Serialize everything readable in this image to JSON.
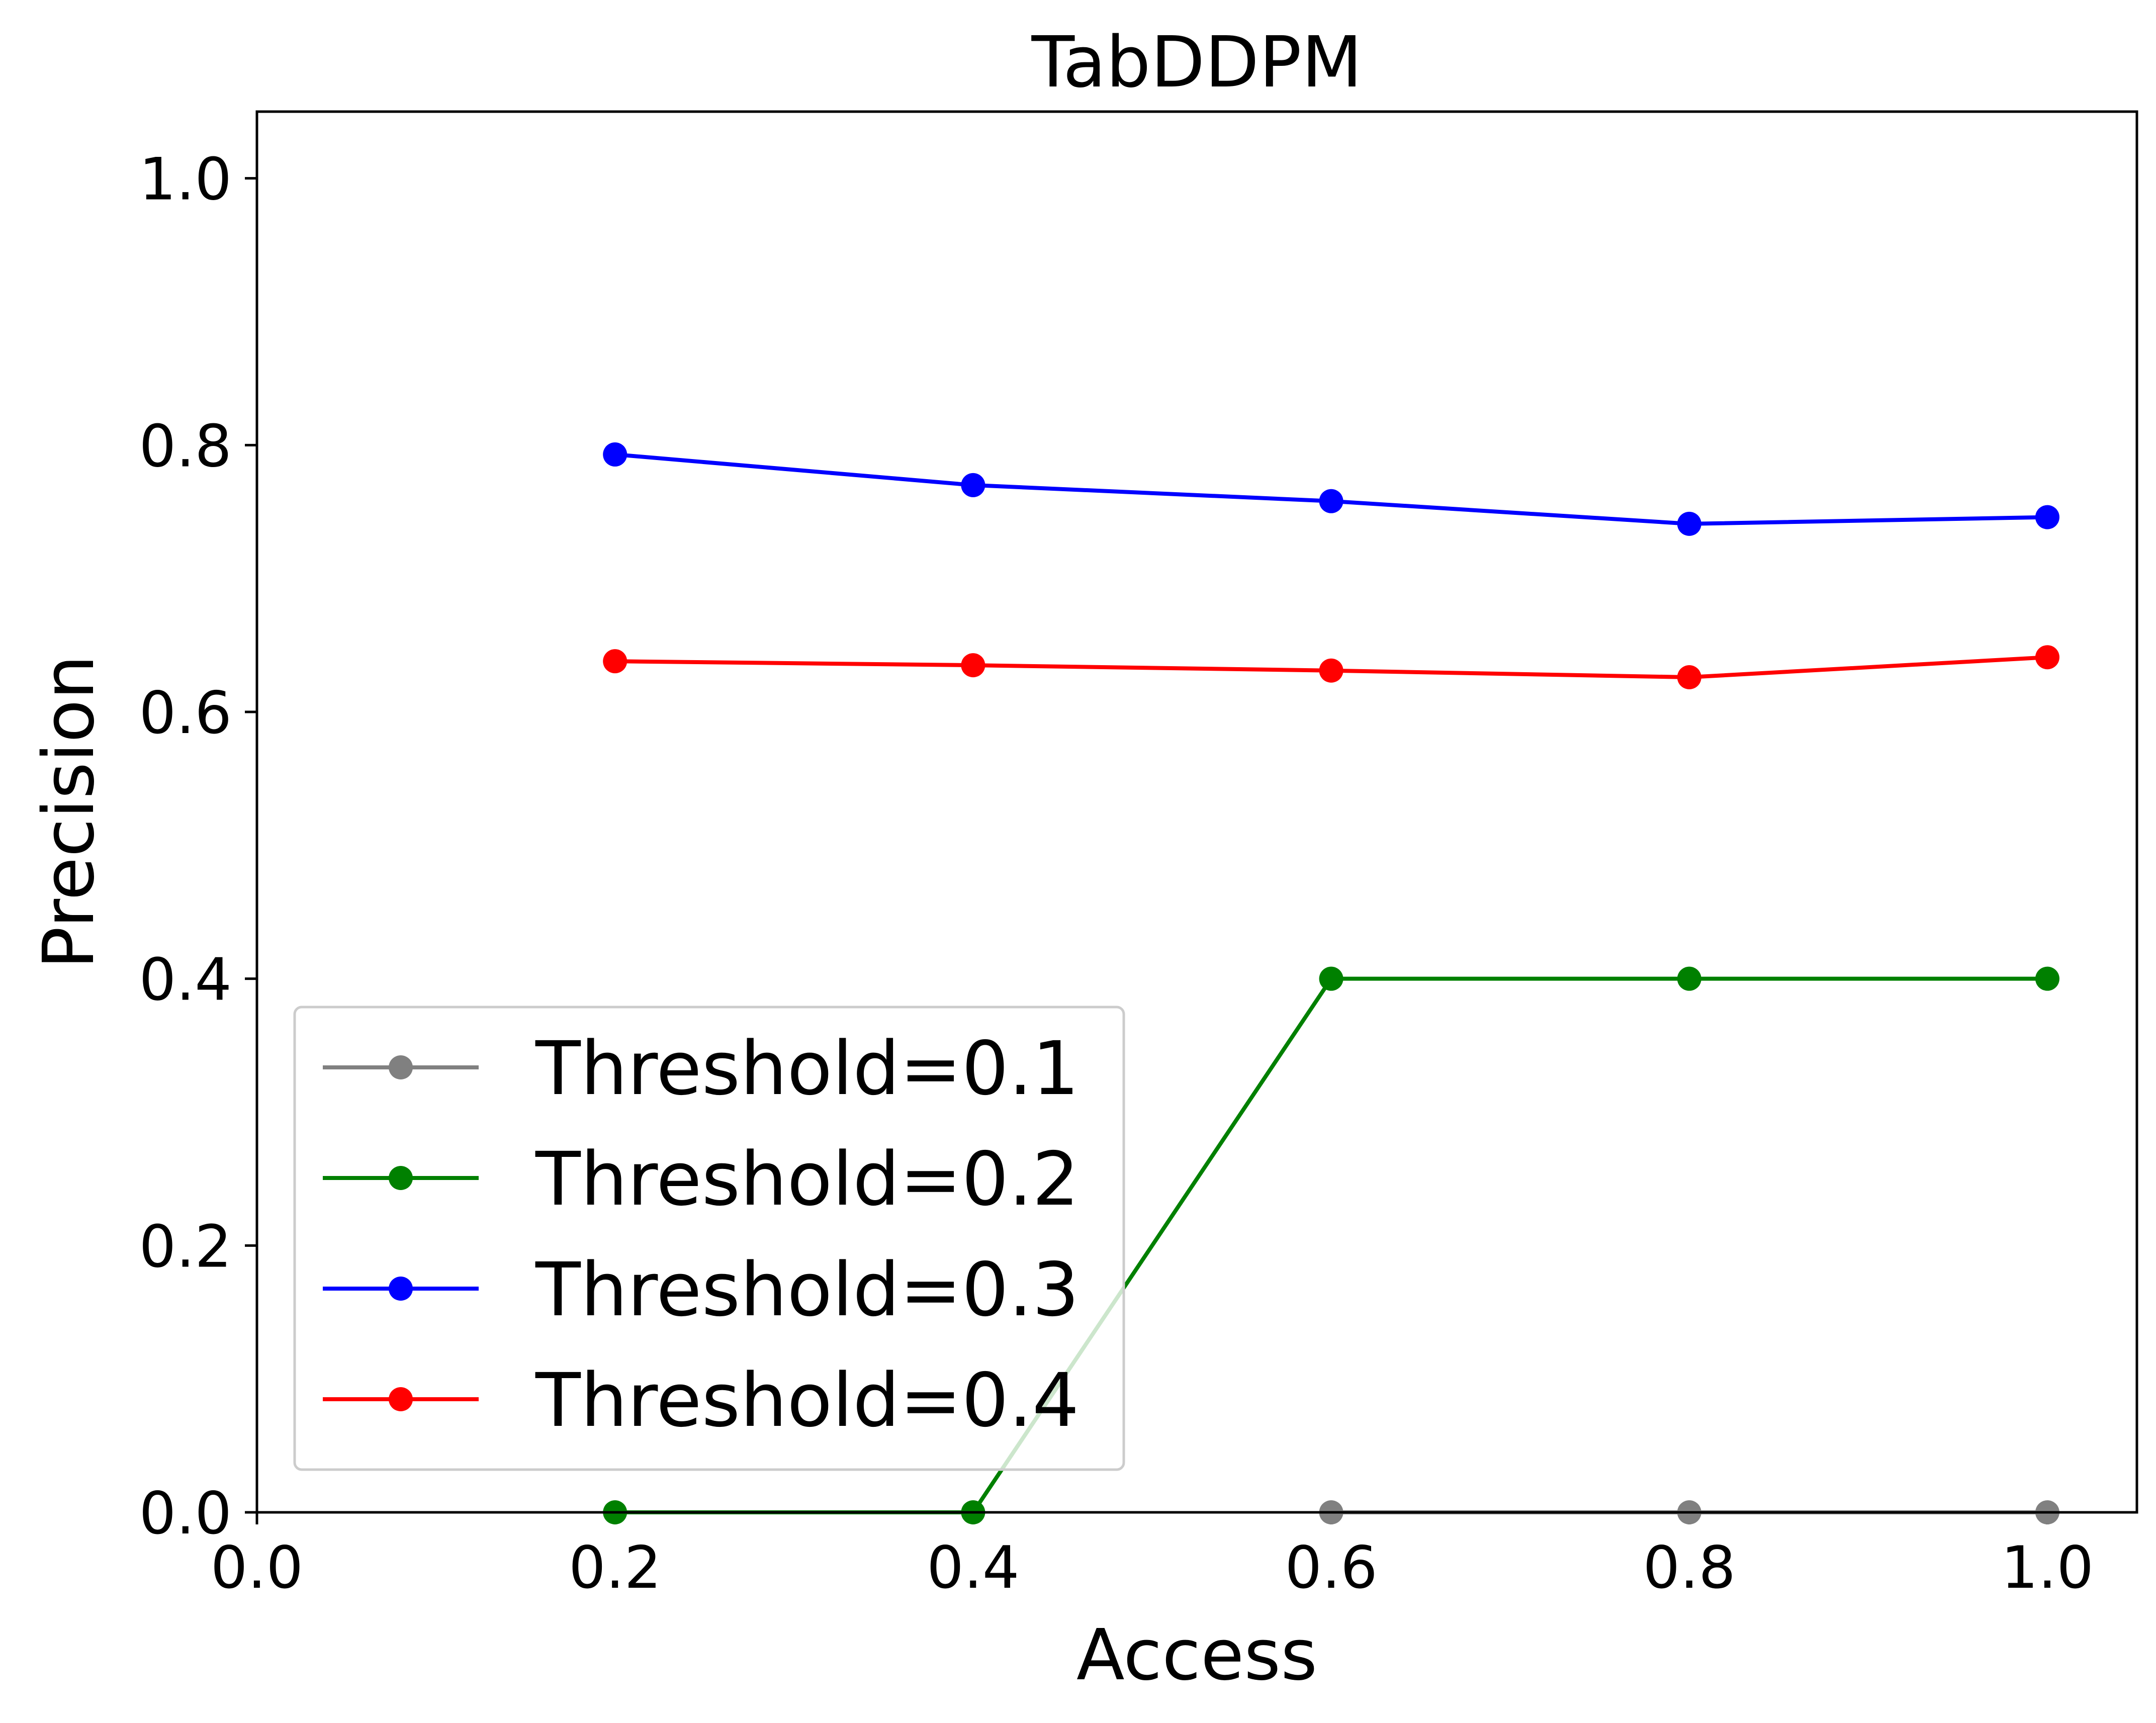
{
  "chart_data": {
    "type": "line",
    "title": "TabDDPM",
    "xlabel": "Access",
    "ylabel": "Precision",
    "xlim": [
      0.0,
      1.05
    ],
    "ylim": [
      0.0,
      1.05
    ],
    "x": [
      0.2,
      0.4,
      0.6,
      0.8,
      1.0
    ],
    "xticks": [
      "0.0",
      "0.2",
      "0.4",
      "0.6",
      "0.8",
      "1.0"
    ],
    "yticks": [
      "0.0",
      "0.2",
      "0.4",
      "0.6",
      "0.8",
      "1.0"
    ],
    "grid": false,
    "legend_position": "lower-left",
    "series": [
      {
        "name": "Threshold=0.1",
        "color": "#808080",
        "values": [
          null,
          null,
          0.0,
          0.0,
          0.0
        ]
      },
      {
        "name": "Threshold=0.2",
        "color": "#008000",
        "values": [
          0.0,
          0.0,
          0.4,
          0.4,
          0.4
        ]
      },
      {
        "name": "Threshold=0.3",
        "color": "#0000ff",
        "values": [
          0.793,
          0.77,
          0.758,
          0.741,
          0.746
        ]
      },
      {
        "name": "Threshold=0.4",
        "color": "#ff0000",
        "values": [
          0.638,
          0.635,
          0.631,
          0.626,
          0.641
        ]
      }
    ]
  }
}
